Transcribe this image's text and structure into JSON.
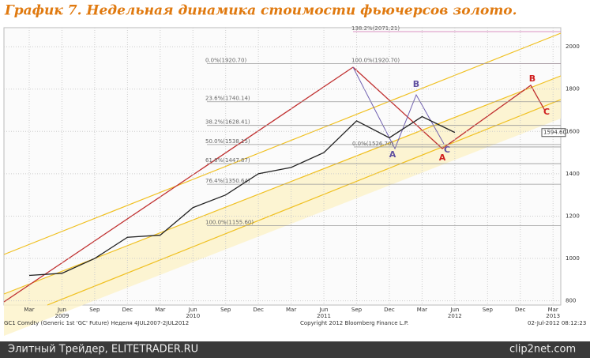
{
  "header": {
    "title": "График 7.   Недельная динамика стоимости фьючерсов золото."
  },
  "chart_data": {
    "type": "line",
    "categories": [
      "Mar",
      "Jun",
      "Sep",
      "Dec",
      "Mar",
      "Jun",
      "Sep",
      "Dec",
      "Mar",
      "Jun",
      "Sep",
      "Dec",
      "Mar",
      "Jun",
      "Sep",
      "Dec",
      "Mar"
    ],
    "year_row": [
      null,
      "2009",
      null,
      null,
      null,
      "2010",
      null,
      null,
      null,
      "2011",
      null,
      null,
      null,
      "2012",
      null,
      null,
      "2013"
    ],
    "series": [
      {
        "name": "GC1 Comdty",
        "color": "#222222",
        "values": [
          920,
          930,
          1000,
          1100,
          1110,
          1240,
          1300,
          1400,
          1430,
          1500,
          1650,
          1570,
          1670,
          1595,
          null,
          null,
          null
        ]
      }
    ],
    "ylim": [
      780,
      2090
    ],
    "yticks": [
      800,
      1000,
      1200,
      1400,
      1600,
      1800,
      2000
    ],
    "grid": true,
    "last_price": {
      "value": 1594.6,
      "label": "1594.60"
    },
    "fib_levels": [
      {
        "value": 2071.21,
        "label": "138.2%(2071.21)"
      },
      {
        "value": 1920.7,
        "label": "100.0%(1920.70)"
      },
      {
        "value": 1920.7,
        "label": "0.0%(1920.70)"
      },
      {
        "value": 1740.14,
        "label": "23.6%(1740.14)"
      },
      {
        "value": 1628.41,
        "label": "38.2%(1628.41)"
      },
      {
        "value": 1538.15,
        "label": "50.0%(1538.15)"
      },
      {
        "value": 1526.7,
        "label": "0.0%(1526.70)"
      },
      {
        "value": 1447.87,
        "label": "61.8%(1447.87)"
      },
      {
        "value": 1350.64,
        "label": "76.4%(1350.64)"
      },
      {
        "value": 1155.6,
        "label": "100.0%(1155.60)"
      }
    ],
    "pattern_labels": [
      "A",
      "B",
      "C",
      "A",
      "B",
      "C"
    ],
    "footer": {
      "left": "GC1 Comdty (Generic 1st 'GC' Future) Неделя 4JUL2007-2JUL2012",
      "center": "Copyright 2012 Bloomberg Finance L.P.",
      "right": "02-Jul-2012 08:12:23"
    }
  },
  "watermark": {
    "left": "Элитный Трейдер, ELITETRADER.RU",
    "right": "clip2net.com"
  }
}
